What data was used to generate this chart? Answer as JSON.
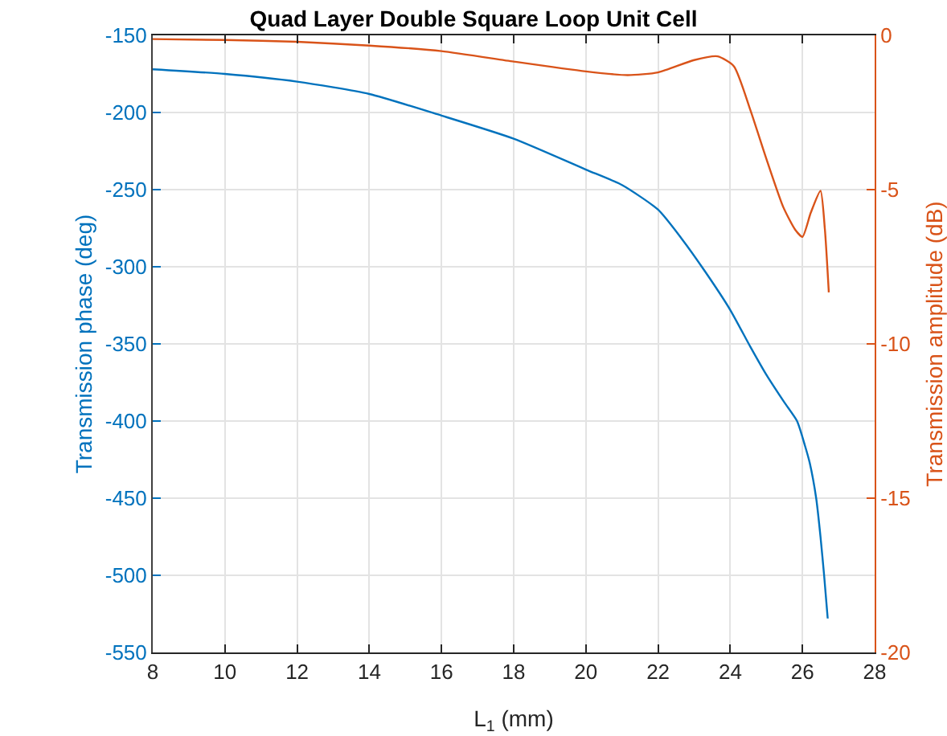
{
  "chart_data": {
    "type": "line",
    "title": "Quad Layer Double Square Loop Unit Cell",
    "xlabel": "L$_{1}$ (mm)",
    "ylabel": "Transmission phase (deg)",
    "y2label": "Transmission amplitude (dB)",
    "xlim": [
      8,
      28
    ],
    "xticks": [
      8,
      10,
      12,
      14,
      16,
      18,
      20,
      22,
      24,
      26,
      28
    ],
    "ylim": [
      -550,
      -150
    ],
    "yticks": [
      -550,
      -500,
      -450,
      -400,
      -350,
      -300,
      -250,
      -200,
      -150
    ],
    "y2lim": [
      -20,
      0
    ],
    "y2ticks": [
      -20,
      -15,
      -10,
      -5,
      0
    ],
    "grid": true,
    "marker": "none",
    "line_style": "solid",
    "series": [
      {
        "color": "#0072bd",
        "x": [
          8,
          10,
          12,
          14,
          16,
          18,
          20,
          21,
          22,
          22.66,
          23.3,
          24,
          24.56,
          25,
          25.5,
          25.85,
          26.07,
          26.2,
          26.38,
          26.5,
          26.6,
          26.7
        ],
        "values": [
          -172,
          -175,
          -180,
          -188,
          -202,
          -217,
          -237,
          -247,
          -263,
          -282,
          -303,
          -328,
          -352,
          -370,
          -388,
          -400,
          -416,
          -427,
          -450,
          -475,
          -500,
          -528
        ]
      },
      {
        "color": "#d95319",
        "axis": "y2",
        "x": [
          8,
          10,
          12,
          14,
          16,
          18,
          20,
          21.16,
          22,
          23,
          23.65,
          24.1,
          24.56,
          25,
          25.47,
          25.8,
          26,
          26.23,
          26.5,
          26.62,
          26.73
        ],
        "values": [
          -0.12,
          -0.15,
          -0.21,
          -0.33,
          -0.51,
          -0.85,
          -1.17,
          -1.29,
          -1.2,
          -0.8,
          -0.68,
          -1,
          -2.43,
          -4,
          -5.57,
          -6.3,
          -6.53,
          -5.75,
          -5.04,
          -6.27,
          -8.33
        ]
      }
    ]
  }
}
